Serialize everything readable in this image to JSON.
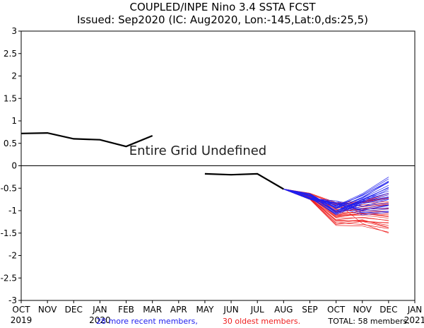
{
  "chart_data": {
    "type": "line",
    "title": "COUPLED/INPE Nino 3.4 SSTA FCST",
    "subtitle": "Issued: Sep2020 (IC: Aug2020, Lon:-145,Lat:0,ds:25,5)",
    "xlabel": "",
    "ylabel": "",
    "ylim": [
      -3,
      3
    ],
    "y_ticks": [
      3,
      2.5,
      2,
      1.5,
      1,
      0.5,
      0,
      -0.5,
      -1,
      -1.5,
      -2,
      -2.5,
      -3
    ],
    "y_tick_labels": [
      "3",
      "2.5",
      "2",
      "1.5",
      "1",
      "0.5",
      "0",
      "-0.5",
      "-1",
      "-1.5",
      "-2",
      "-2.5",
      "-3"
    ],
    "x_tick_labels": [
      "OCT",
      "NOV",
      "DEC",
      "JAN",
      "FEB",
      "MAR",
      "APR",
      "MAY",
      "JUN",
      "JUL",
      "AUG",
      "SEP",
      "OCT",
      "NOV",
      "DEC",
      "JAN"
    ],
    "year_labels": [
      {
        "text": "2019",
        "month_index": 0
      },
      {
        "text": "2020",
        "month_index": 3
      },
      {
        "text": "2021",
        "month_index": 15
      }
    ],
    "annotation": "Entire Grid Undefined",
    "observed": [
      {
        "name": "observed-oct-mar",
        "points": [
          [
            0,
            0.72
          ],
          [
            1,
            0.73
          ],
          [
            2,
            0.6
          ],
          [
            3,
            0.58
          ],
          [
            4,
            0.43
          ],
          [
            5,
            0.67
          ]
        ]
      },
      {
        "name": "observed-may-aug",
        "points": [
          [
            7,
            -0.18
          ],
          [
            8,
            -0.2
          ],
          [
            9,
            -0.18
          ],
          [
            10,
            -0.52
          ]
        ]
      }
    ],
    "ensemble": {
      "start": [
        10,
        -0.52
      ],
      "months": [
        10,
        11,
        12,
        13,
        14
      ],
      "recent": {
        "name": "28 more recent members",
        "color": "#2020ee",
        "count": 28,
        "final_range": [
          -1.05,
          -0.25
        ],
        "oct_range": [
          -1.1,
          -0.78
        ],
        "nov_range": [
          -1.05,
          -0.6
        ]
      },
      "oldest": {
        "name": "30 oldest members",
        "color": "#ee2020",
        "count": 30,
        "final_range": [
          -1.48,
          -0.6
        ],
        "oct_range": [
          -1.32,
          -0.82
        ],
        "nov_range": [
          -1.32,
          -0.75
        ]
      },
      "total": "TOTAL: 58 members"
    },
    "legend": {
      "recent": "28 more recent members,",
      "oldest": "30 oldest members.",
      "total": "TOTAL: 58 members."
    }
  },
  "colors": {
    "observed": "#000000",
    "zero_line": "#000000",
    "recent": "#2020ee",
    "oldest": "#ee2020",
    "annotation": "#222222"
  }
}
